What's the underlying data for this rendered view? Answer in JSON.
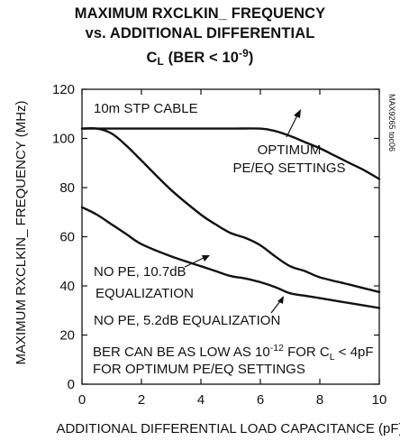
{
  "title": {
    "line1": "MAXIMUM RXCLKIN_ FREQUENCY",
    "line2": "vs. ADDITIONAL DIFFERENTIAL",
    "line3_main": "C",
    "line3_sub": "L",
    "line3_mid": " (BER < 10",
    "line3_sup": "-9",
    "line3_end": ")"
  },
  "chart_data": {
    "type": "line",
    "xlabel": "ADDITIONAL DIFFERENTIAL LOAD CAPACITANCE (pF)",
    "ylabel": "MAXIMUM RXCLKIN_ FREQUENCY (MHz)",
    "xlim": [
      0,
      10
    ],
    "ylim": [
      0,
      120
    ],
    "x_ticks": [
      "0",
      "2",
      "4",
      "6",
      "8",
      "10"
    ],
    "y_ticks": [
      "0",
      "20",
      "40",
      "60",
      "80",
      "100",
      "120"
    ],
    "grid": false,
    "figure_code": "MAX9265 toc06",
    "series": [
      {
        "name": "OPTIMUM PE/EQ SETTINGS",
        "x": [
          0,
          1,
          2,
          3,
          4,
          5,
          6,
          6.5,
          7,
          7.5,
          8,
          8.5,
          9,
          9.5,
          10
        ],
        "y": [
          104,
          104,
          104,
          104,
          104,
          104,
          104,
          103,
          101,
          98.5,
          96,
          93,
          90,
          87,
          83.5
        ]
      },
      {
        "name": "NO PE, 10.7dB EQUALIZATION",
        "x": [
          0,
          0.5,
          1,
          1.5,
          2,
          3,
          4,
          4.5,
          5,
          5.5,
          6,
          6.5,
          7,
          7.5,
          8,
          9,
          10
        ],
        "y": [
          104,
          104,
          102,
          97,
          91,
          79,
          69,
          65,
          61.5,
          59.5,
          56.5,
          52,
          48,
          46,
          43.5,
          40.5,
          37.5
        ]
      },
      {
        "name": "NO PE, 5.2dB EQUALIZATION",
        "x": [
          0,
          0.5,
          1,
          1.5,
          2,
          3,
          4,
          4.5,
          5,
          5.5,
          6,
          6.5,
          7,
          7.5,
          8,
          9,
          10
        ],
        "y": [
          72,
          69,
          65,
          61,
          57,
          52,
          48,
          46,
          44,
          43,
          41.5,
          39.5,
          37,
          36,
          35,
          33,
          31
        ]
      }
    ],
    "annotations": {
      "cable": "10m STP CABLE",
      "optimum_line1": "OPTIMUM",
      "optimum_line2": "PE/EQ SETTINGS",
      "nope107_line1": "NO PE, 10.7dB",
      "nope107_line2": "EQUALIZATION",
      "nope52": "NO PE, 5.2dB EQUALIZATION",
      "ber_line1_a": "BER CAN BE AS LOW AS 10",
      "ber_line1_sup": "-12",
      "ber_line1_b": " FOR C",
      "ber_line1_sub": "L",
      "ber_line1_c": " < 4pF",
      "ber_line2": "FOR OPTIMUM PE/EQ SETTINGS"
    }
  }
}
